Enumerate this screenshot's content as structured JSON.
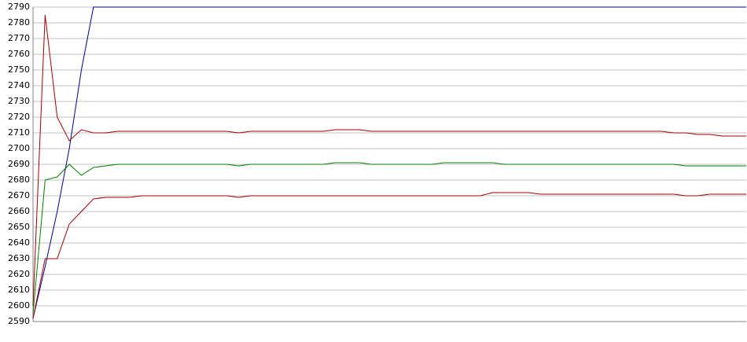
{
  "chart_data": {
    "type": "line",
    "categories": [
      null,
      null,
      null,
      null,
      null,
      null,
      null,
      null,
      null,
      null,
      null,
      null,
      null,
      null,
      null,
      null,
      null,
      null,
      null,
      null,
      null,
      null,
      null,
      null,
      null,
      null,
      null,
      null,
      null,
      null,
      null,
      null,
      null,
      null,
      null,
      null,
      null,
      null,
      null,
      null,
      null,
      null,
      null,
      null,
      null,
      null,
      null,
      null,
      null,
      null,
      null,
      null,
      null,
      null,
      null,
      null,
      null,
      null,
      null,
      null
    ],
    "series": [
      {
        "color": "#00008b",
        "values": [
          2592,
          2625,
          2660,
          2700,
          2750,
          2790,
          2790,
          2790,
          2790,
          2790,
          2790,
          2790,
          2790,
          2790,
          2790,
          2790,
          2790,
          2790,
          2790,
          2790,
          2790,
          2790,
          2790,
          2790,
          2790,
          2790,
          2790,
          2790,
          2790,
          2790,
          2790,
          2790,
          2790,
          2790,
          2790,
          2790,
          2790,
          2790,
          2790,
          2790,
          2790,
          2790,
          2790,
          2790,
          2790,
          2790,
          2790,
          2790,
          2790,
          2790,
          2790,
          2790,
          2790,
          2790,
          2790,
          2790,
          2790,
          2790,
          2790,
          2790
        ]
      },
      {
        "color": "#a00000",
        "values": [
          2600,
          2785,
          2720,
          2705,
          2712,
          2710,
          2710,
          2711,
          2711,
          2711,
          2711,
          2711,
          2711,
          2711,
          2711,
          2711,
          2711,
          2710,
          2711,
          2711,
          2711,
          2711,
          2711,
          2711,
          2711,
          2712,
          2712,
          2712,
          2711,
          2711,
          2711,
          2711,
          2711,
          2711,
          2711,
          2711,
          2711,
          2711,
          2711,
          2711,
          2711,
          2711,
          2711,
          2711,
          2711,
          2711,
          2711,
          2711,
          2711,
          2711,
          2711,
          2711,
          2711,
          2710,
          2710,
          2709,
          2709,
          2708,
          2708,
          2708
        ]
      },
      {
        "color": "#008000",
        "values": [
          2595,
          2680,
          2682,
          2690,
          2683,
          2688,
          2689,
          2690,
          2690,
          2690,
          2690,
          2690,
          2690,
          2690,
          2690,
          2690,
          2690,
          2689,
          2690,
          2690,
          2690,
          2690,
          2690,
          2690,
          2690,
          2691,
          2691,
          2691,
          2690,
          2690,
          2690,
          2690,
          2690,
          2690,
          2691,
          2691,
          2691,
          2691,
          2691,
          2690,
          2690,
          2690,
          2690,
          2690,
          2690,
          2690,
          2690,
          2690,
          2690,
          2690,
          2690,
          2690,
          2690,
          2690,
          2689,
          2689,
          2689,
          2689,
          2689,
          2689
        ]
      },
      {
        "color": "#a00000",
        "values": [
          2592,
          2630,
          2630,
          2652,
          2660,
          2668,
          2669,
          2669,
          2669,
          2670,
          2670,
          2670,
          2670,
          2670,
          2670,
          2670,
          2670,
          2669,
          2670,
          2670,
          2670,
          2670,
          2670,
          2670,
          2670,
          2670,
          2670,
          2670,
          2670,
          2670,
          2670,
          2670,
          2670,
          2670,
          2670,
          2670,
          2670,
          2670,
          2672,
          2672,
          2672,
          2672,
          2671,
          2671,
          2671,
          2671,
          2671,
          2671,
          2671,
          2671,
          2671,
          2671,
          2671,
          2671,
          2670,
          2670,
          2671,
          2671,
          2671,
          2671
        ]
      }
    ],
    "ylim": [
      2590,
      2790
    ],
    "yticks": [
      2590,
      2600,
      2610,
      2620,
      2630,
      2640,
      2650,
      2660,
      2670,
      2680,
      2690,
      2700,
      2710,
      2720,
      2730,
      2740,
      2750,
      2760,
      2770,
      2780,
      2790
    ],
    "grid": true
  }
}
